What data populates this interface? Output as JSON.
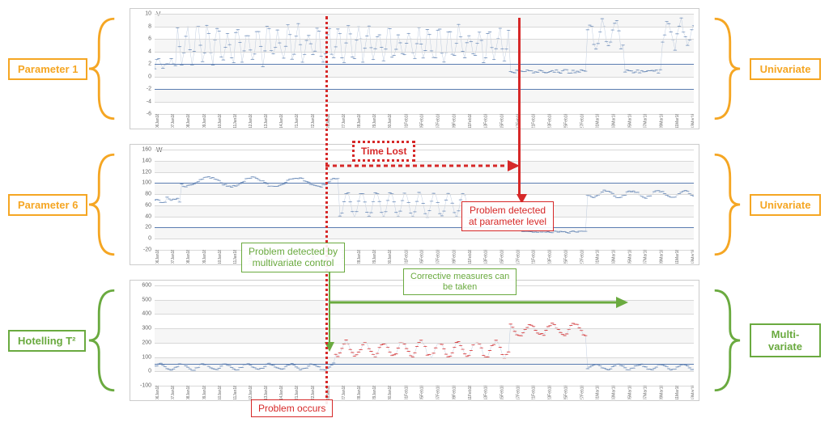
{
  "labels": {
    "left": [
      "Parameter 1",
      "Parameter 6",
      "Hotelling T²"
    ],
    "right": [
      "Univariate",
      "Univariate",
      "Multi-\nvariate"
    ]
  },
  "brace_colors": [
    "#f5a623",
    "#f5a623",
    "#6aaa3f"
  ],
  "annotations": {
    "time_lost": "Time Lost",
    "problem_detected_param": "Problem detected\nat parameter level",
    "problem_detected_mv": "Problem detected by\nmultivariate control",
    "corrective": "Corrective measures can\nbe taken",
    "problem_occurs": "Problem occurs"
  },
  "charts": [
    {
      "axis_title": "V",
      "ylim": [
        -6,
        10
      ],
      "grid_step": 2,
      "ctrl_lines": [
        2,
        -2
      ],
      "band_color": "#f0f0f0",
      "series_color": "#6b8bb8",
      "data_pattern": "param1"
    },
    {
      "axis_title": "W",
      "ylim": [
        -20,
        160
      ],
      "grid_step": 20,
      "ctrl_lines": [
        100,
        20
      ],
      "band_color": "#f0f0f0",
      "series_color": "#6b8bb8",
      "data_pattern": "param6"
    },
    {
      "axis_title": "",
      "ylim": [
        -100,
        600
      ],
      "grid_step": 100,
      "ctrl_lines": [
        50
      ],
      "band_color": "#f0f0f0",
      "series_color": "#6b8bb8",
      "anomaly_color": "#d62828",
      "data_pattern": "hotelling"
    }
  ],
  "x_dates": [
    "06Jan18",
    "07Jan18",
    "08Jan18",
    "09Jan18",
    "10Jan18",
    "11Jan18",
    "12Jan18",
    "13Jan18",
    "14Jan18",
    "21Jan18",
    "22Jan18",
    "26Jan18",
    "27Jan18",
    "28Jan18",
    "29Jan18",
    "30Jan18",
    "01Feb18",
    "05Feb18",
    "07Feb18",
    "09Feb18",
    "11Feb18",
    "13Feb18",
    "15Feb18",
    "17Feb18",
    "21Feb18",
    "23Feb18",
    "25Feb18",
    "27Feb18",
    "01Mar18",
    "03Mar18",
    "05Mar18",
    "07Mar18",
    "09Mar18",
    "11Mar18",
    "13Mar18",
    "19Mar18",
    "20Mar18",
    "22Mar18",
    "24Mar18",
    "26Mar18",
    "28Mar18",
    "30Mar18",
    "01Apr18",
    "05Apr18",
    "09Apr18",
    "10Apr18",
    "13Apr18",
    "17Apr18",
    "18Apr18",
    "20Apr18",
    "23Apr18",
    "25Apr18",
    "26Apr18"
  ],
  "event_positions": {
    "problem_occurs_x": 0.335,
    "problem_detected_param_x": 0.66
  },
  "colors": {
    "red": "#d62828",
    "green": "#6aaa3f",
    "orange": "#f5a623",
    "blue": "#6b8bb8"
  }
}
